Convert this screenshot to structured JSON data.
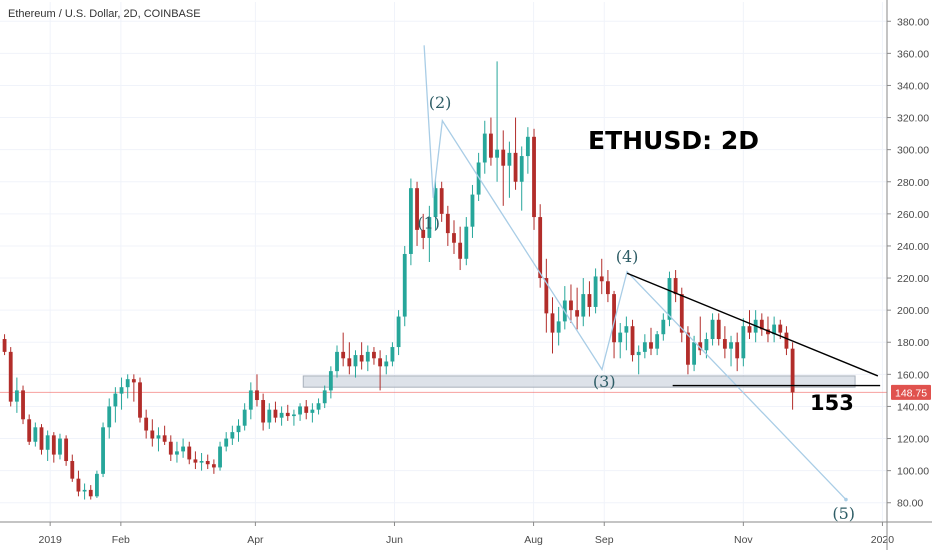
{
  "header": {
    "title": "Ethereum / U.S. Dollar, 2D, COINBASE"
  },
  "annotations": {
    "headline": "ETHUSD: 2D",
    "support_level_label": "153",
    "waves": [
      {
        "label": "(1)",
        "date": "2019-06-16",
        "price": 251
      },
      {
        "label": "(2)",
        "date": "2019-06-21",
        "price": 326
      },
      {
        "label": "(3)",
        "date": "2019-09-01",
        "price": 152
      },
      {
        "label": "(4)",
        "date": "2019-09-11",
        "price": 230
      },
      {
        "label": "(5)",
        "date": "2019-12-15",
        "price": 70
      }
    ]
  },
  "last_price": {
    "label": "148.75",
    "value": 148.75
  },
  "colors": {
    "up": "#26a69a",
    "down": "#b22d2a",
    "wave_line": "#a9cde6",
    "zone_fill": "#d8dde6",
    "zone_stroke": "#9aa3b0",
    "trendline": "#000000",
    "price_line": "#ef5350",
    "price_tag": "#e0524e"
  },
  "chart_data": {
    "type": "candlestick",
    "title": "Ethereum / U.S. Dollar, 2D, COINBASE",
    "xlabel": "",
    "ylabel": "",
    "timeframe": "2D",
    "x_range": [
      "2018-12-10",
      "2020-01-03"
    ],
    "ylim": [
      68,
      392
    ],
    "grid": true,
    "y_ticks": [
      80,
      100,
      120,
      140,
      160,
      180,
      200,
      220,
      240,
      260,
      280,
      300,
      320,
      340,
      360,
      380
    ],
    "y_tick_labels": [
      "80.00",
      "100.00",
      "120.00",
      "140.00",
      "160.00",
      "180.00",
      "200.00",
      "220.00",
      "240.00",
      "260.00",
      "280.00",
      "300.00",
      "320.00",
      "340.00",
      "360.00",
      "380.00"
    ],
    "x_ticks": [
      {
        "date": "2019-01-01",
        "label": "2019"
      },
      {
        "date": "2019-02-01",
        "label": "Feb"
      },
      {
        "date": "2019-04-01",
        "label": "Apr"
      },
      {
        "date": "2019-06-01",
        "label": "Jun"
      },
      {
        "date": "2019-08-01",
        "label": "Aug"
      },
      {
        "date": "2019-09-01",
        "label": "Sep"
      },
      {
        "date": "2019-11-01",
        "label": "Nov"
      },
      {
        "date": "2020-01-01",
        "label": "2020"
      }
    ],
    "candles_ohlc": [
      [
        182,
        185,
        172,
        174
      ],
      [
        174,
        177,
        140,
        143
      ],
      [
        143,
        158,
        136,
        150
      ],
      [
        150,
        153,
        129,
        132
      ],
      [
        132,
        135,
        116,
        118
      ],
      [
        118,
        130,
        115,
        127
      ],
      [
        127,
        129,
        110,
        113
      ],
      [
        113,
        125,
        106,
        122
      ],
      [
        122,
        124,
        105,
        110
      ],
      [
        110,
        123,
        107,
        120
      ],
      [
        120,
        122,
        103,
        106
      ],
      [
        106,
        110,
        93,
        95
      ],
      [
        95,
        100,
        84,
        87
      ],
      [
        87,
        92,
        82,
        88
      ],
      [
        88,
        91,
        82,
        84
      ],
      [
        84,
        100,
        83,
        98
      ],
      [
        98,
        130,
        96,
        127
      ],
      [
        127,
        145,
        120,
        140
      ],
      [
        140,
        152,
        130,
        148
      ],
      [
        148,
        158,
        138,
        152
      ],
      [
        152,
        160,
        145,
        157
      ],
      [
        157,
        160,
        143,
        155
      ],
      [
        155,
        158,
        130,
        133
      ],
      [
        133,
        138,
        120,
        125
      ],
      [
        125,
        132,
        115,
        120
      ],
      [
        120,
        127,
        112,
        122
      ],
      [
        122,
        128,
        116,
        118
      ],
      [
        118,
        122,
        106,
        110
      ],
      [
        110,
        118,
        105,
        112
      ],
      [
        112,
        120,
        108,
        115
      ],
      [
        115,
        118,
        104,
        107
      ],
      [
        107,
        112,
        101,
        105
      ],
      [
        105,
        111,
        100,
        106
      ],
      [
        106,
        110,
        101,
        104
      ],
      [
        104,
        107,
        98,
        102
      ],
      [
        102,
        118,
        100,
        115
      ],
      [
        115,
        124,
        112,
        120
      ],
      [
        120,
        128,
        116,
        124
      ],
      [
        124,
        132,
        118,
        128
      ],
      [
        128,
        142,
        125,
        138
      ],
      [
        138,
        155,
        132,
        150
      ],
      [
        150,
        160,
        140,
        144
      ],
      [
        144,
        148,
        125,
        130
      ],
      [
        130,
        142,
        126,
        138
      ],
      [
        138,
        143,
        130,
        133
      ],
      [
        133,
        140,
        128,
        136
      ],
      [
        136,
        141,
        131,
        134
      ],
      [
        134,
        138,
        128,
        135
      ],
      [
        135,
        142,
        131,
        140
      ],
      [
        140,
        144,
        132,
        136
      ],
      [
        136,
        142,
        130,
        138
      ],
      [
        138,
        145,
        135,
        142
      ],
      [
        142,
        153,
        139,
        150
      ],
      [
        150,
        165,
        145,
        162
      ],
      [
        162,
        178,
        158,
        174
      ],
      [
        174,
        186,
        165,
        170
      ],
      [
        170,
        180,
        160,
        165
      ],
      [
        165,
        175,
        158,
        172
      ],
      [
        172,
        180,
        163,
        168
      ],
      [
        168,
        178,
        162,
        174
      ],
      [
        174,
        177,
        166,
        170
      ],
      [
        170,
        175,
        150,
        165
      ],
      [
        165,
        172,
        160,
        168
      ],
      [
        168,
        180,
        165,
        177
      ],
      [
        177,
        200,
        172,
        196
      ],
      [
        196,
        240,
        190,
        235
      ],
      [
        235,
        282,
        228,
        276
      ],
      [
        276,
        280,
        240,
        250
      ],
      [
        250,
        260,
        238,
        245
      ],
      [
        245,
        265,
        230,
        258
      ],
      [
        258,
        282,
        250,
        276
      ],
      [
        276,
        280,
        255,
        260
      ],
      [
        260,
        265,
        240,
        248
      ],
      [
        248,
        256,
        235,
        242
      ],
      [
        242,
        252,
        225,
        232
      ],
      [
        232,
        258,
        228,
        252
      ],
      [
        252,
        278,
        245,
        272
      ],
      [
        272,
        298,
        268,
        292
      ],
      [
        292,
        318,
        285,
        310
      ],
      [
        310,
        320,
        290,
        295
      ],
      [
        295,
        355,
        280,
        300
      ],
      [
        300,
        312,
        265,
        290
      ],
      [
        290,
        305,
        270,
        298
      ],
      [
        298,
        320,
        275,
        280
      ],
      [
        280,
        302,
        262,
        296
      ],
      [
        296,
        314,
        285,
        308
      ],
      [
        308,
        313,
        250,
        258
      ],
      [
        258,
        266,
        214,
        220
      ],
      [
        220,
        232,
        186,
        198
      ],
      [
        198,
        208,
        173,
        186
      ],
      [
        186,
        202,
        178,
        193
      ],
      [
        193,
        215,
        188,
        206
      ],
      [
        206,
        216,
        192,
        200
      ],
      [
        200,
        214,
        188,
        196
      ],
      [
        196,
        220,
        190,
        210
      ],
      [
        210,
        218,
        196,
        202
      ],
      [
        202,
        226,
        198,
        221
      ],
      [
        221,
        232,
        210,
        218
      ],
      [
        218,
        225,
        205,
        210
      ],
      [
        210,
        212,
        170,
        180
      ],
      [
        180,
        192,
        170,
        186
      ],
      [
        186,
        196,
        175,
        190
      ],
      [
        190,
        194,
        168,
        172
      ],
      [
        172,
        178,
        160,
        174
      ],
      [
        174,
        185,
        170,
        180
      ],
      [
        180,
        189,
        172,
        176
      ],
      [
        176,
        187,
        172,
        185
      ],
      [
        185,
        198,
        181,
        194
      ],
      [
        194,
        224,
        190,
        220
      ],
      [
        220,
        225,
        205,
        210
      ],
      [
        210,
        214,
        180,
        186
      ],
      [
        186,
        190,
        160,
        166
      ],
      [
        166,
        184,
        162,
        180
      ],
      [
        180,
        196,
        172,
        175
      ],
      [
        175,
        186,
        170,
        182
      ],
      [
        182,
        198,
        178,
        194
      ],
      [
        194,
        198,
        178,
        182
      ],
      [
        182,
        190,
        170,
        176
      ],
      [
        176,
        184,
        165,
        180
      ],
      [
        180,
        186,
        162,
        170
      ],
      [
        170,
        195,
        165,
        190
      ],
      [
        190,
        200,
        182,
        186
      ],
      [
        186,
        200,
        180,
        194
      ],
      [
        194,
        198,
        184,
        188
      ],
      [
        188,
        196,
        180,
        185
      ],
      [
        185,
        196,
        180,
        191
      ],
      [
        191,
        194,
        182,
        186
      ],
      [
        186,
        190,
        172,
        176
      ],
      [
        176,
        180,
        138,
        148.75
      ]
    ],
    "candle_start": "2018-12-12",
    "candle_interval_days": 2.7,
    "support_zone": {
      "from": "2019-04-22",
      "to": "2019-12-20",
      "low": 152,
      "high": 159
    },
    "support_line": {
      "from": "2019-10-01",
      "to": "2019-12-31",
      "price": 153
    },
    "descending_trendline": {
      "from": [
        "2019-09-11",
        223
      ],
      "to": [
        "2019-12-30",
        159
      ]
    },
    "wave_path": [
      [
        "2019-06-14",
        365
      ],
      [
        "2019-06-18",
        270
      ],
      [
        "2019-06-22",
        318
      ],
      [
        "2019-08-31",
        163
      ],
      [
        "2019-09-11",
        224
      ],
      [
        "2019-12-16",
        82
      ]
    ],
    "last_price_line": 148.75
  }
}
